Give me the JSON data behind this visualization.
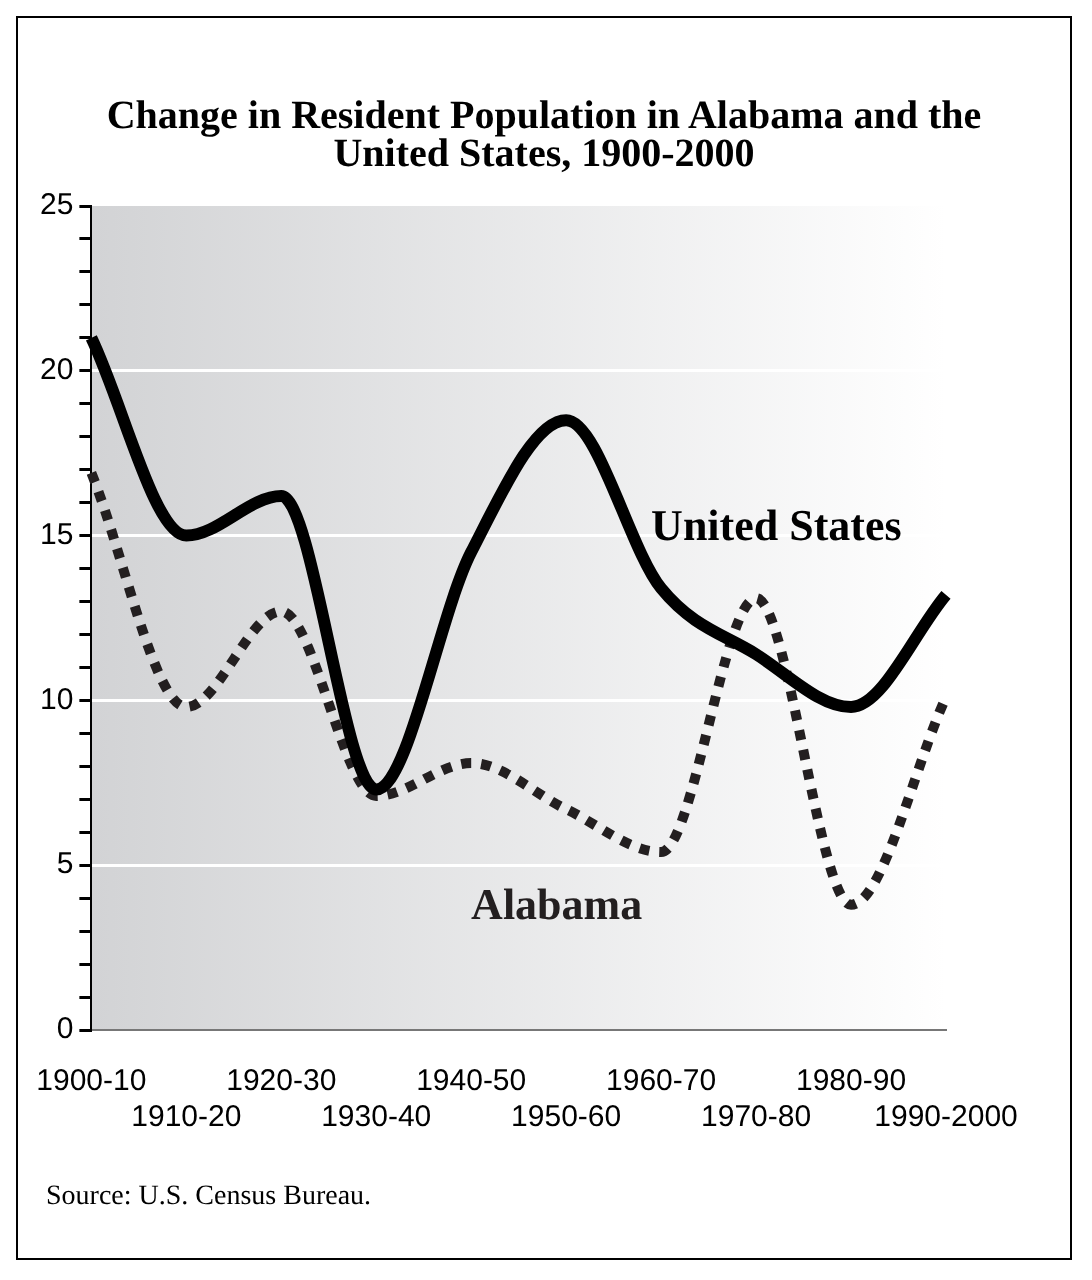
{
  "chart_data": {
    "type": "line",
    "title": "Change in Resident Population in Alabama and the United States, 1900-2000",
    "categories": [
      "1900-10",
      "1910-20",
      "1920-30",
      "1930-40",
      "1940-50",
      "1950-60",
      "1960-70",
      "1970-80",
      "1980-90",
      "1990-2000"
    ],
    "series": [
      {
        "name": "United States",
        "color": "#000000",
        "line_style": "solid",
        "values": [
          21.0,
          15.0,
          16.2,
          7.3,
          14.5,
          18.5,
          13.4,
          11.4,
          9.8,
          13.2
        ]
      },
      {
        "name": "Alabama",
        "color": "#231f20",
        "line_style": "dotted",
        "values": [
          16.9,
          9.8,
          12.7,
          7.1,
          8.1,
          6.7,
          5.4,
          13.1,
          3.8,
          10.1
        ]
      }
    ],
    "ylim": [
      0,
      25
    ],
    "yticks": [
      0,
      {
        "value": 1,
        "label": null
      },
      {
        "value": 2,
        "label": null
      },
      {
        "value": 3,
        "label": null
      },
      {
        "value": 4,
        "label": null
      },
      5,
      {
        "value": 6,
        "label": null
      },
      {
        "value": 7,
        "label": null
      },
      {
        "value": 8,
        "label": null
      },
      {
        "value": 9,
        "label": null
      },
      10,
      {
        "value": 11,
        "label": null
      },
      {
        "value": 12,
        "label": null
      },
      {
        "value": 13,
        "label": null
      },
      {
        "value": 14,
        "label": null
      },
      15,
      {
        "value": 16,
        "label": null
      },
      {
        "value": 17,
        "label": null
      },
      {
        "value": 18,
        "label": null
      },
      {
        "value": 19,
        "label": null
      },
      20,
      {
        "value": 21,
        "label": null
      },
      {
        "value": 22,
        "label": null
      },
      {
        "value": 23,
        "label": null
      },
      {
        "value": 24,
        "label": null
      },
      25
    ],
    "grid": "y",
    "marker": "none",
    "legend": false,
    "annotations": [
      "Source:  U.S. Census Bureau."
    ]
  }
}
